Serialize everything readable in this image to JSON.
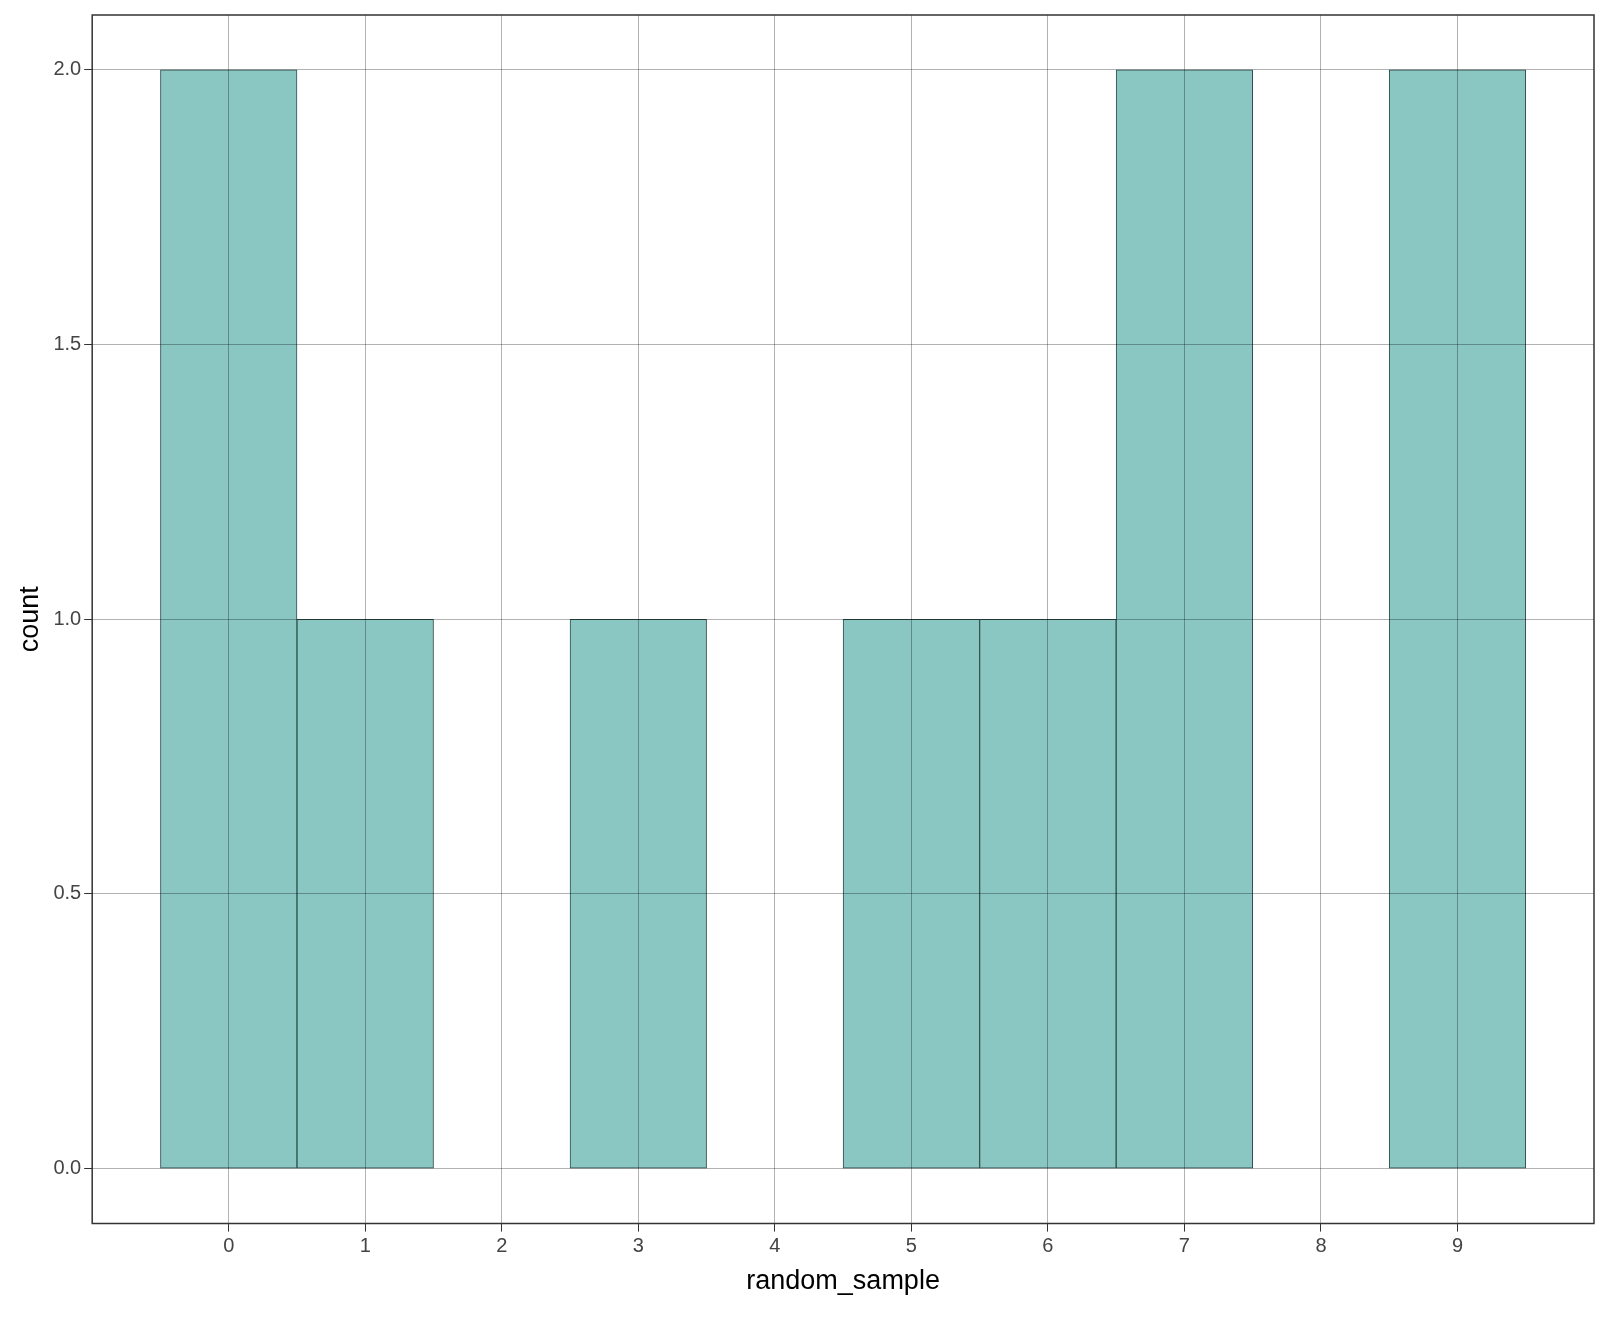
{
  "chart_data": {
    "type": "histogram",
    "xlabel": "random_sample",
    "ylabel": "count",
    "bins": [
      -0.5,
      0.5,
      1.5,
      2.5,
      3.5,
      4.5,
      5.5,
      6.5,
      7.5,
      8.5,
      9.5
    ],
    "values": [
      2,
      1,
      0,
      1,
      0,
      1,
      1,
      2,
      0,
      2
    ],
    "color": "#8ac6c2",
    "xlim": [
      -1,
      10
    ],
    "xticks": [
      0,
      1,
      2,
      3,
      4,
      5,
      6,
      7,
      8,
      9
    ],
    "ylim": [
      -0.1,
      2.1
    ],
    "yticks": [
      {
        "value": 0,
        "label": "0.0"
      },
      {
        "value": 0.5,
        "label": "0.5"
      },
      {
        "value": 1,
        "label": "1.0"
      },
      {
        "value": 1.5,
        "label": "1.5"
      },
      {
        "value": 2,
        "label": "2.0"
      }
    ],
    "grid": true,
    "legend": false
  }
}
